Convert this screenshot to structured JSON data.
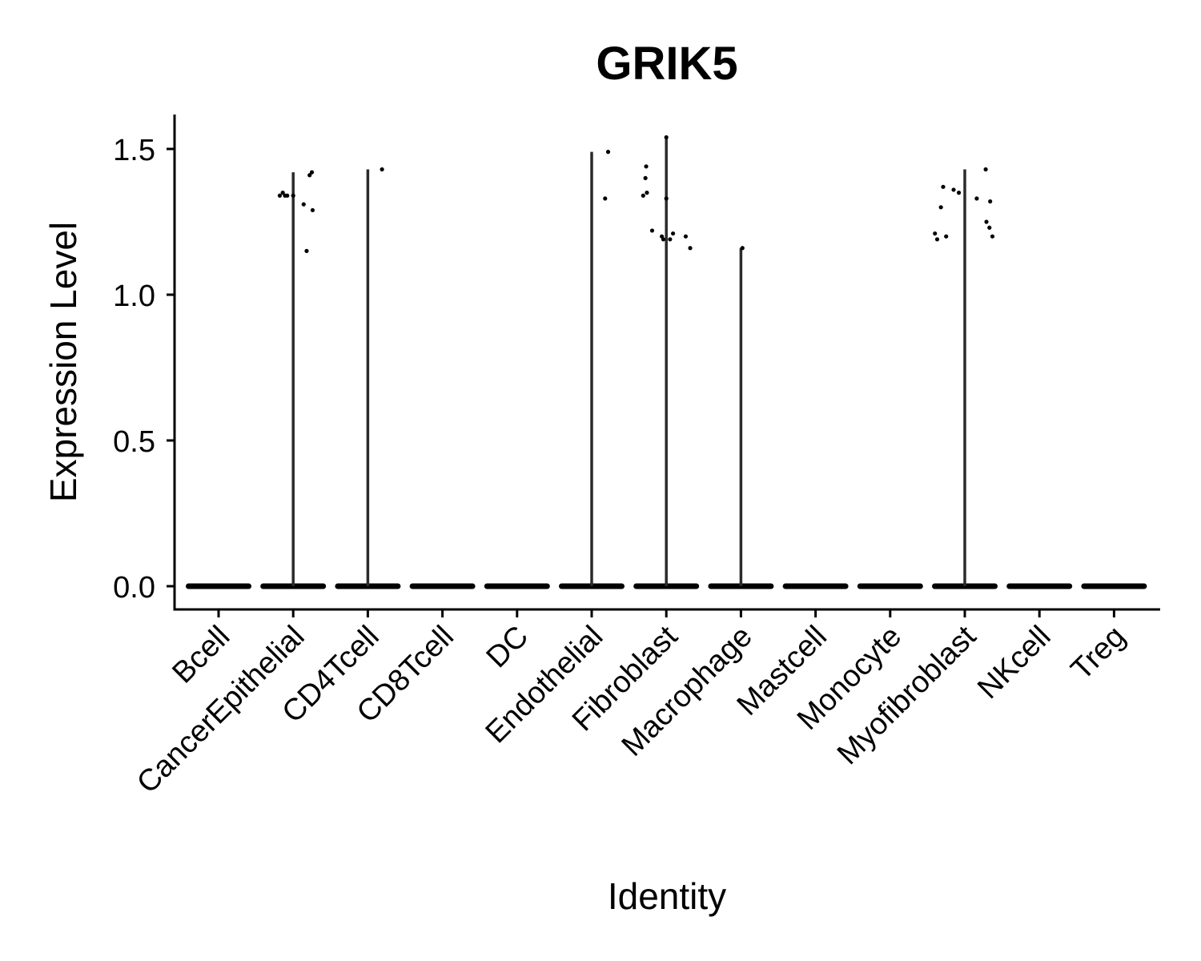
{
  "chart_data": {
    "type": "violin",
    "title": "GRIK5",
    "xlabel": "Identity",
    "ylabel": "Expression Level",
    "ylim": [
      -0.08,
      1.62
    ],
    "yticks": [
      "0.0",
      "0.5",
      "1.0",
      "1.5"
    ],
    "ytick_values": [
      0.0,
      0.5,
      1.0,
      1.5
    ],
    "categories": [
      "Bcell",
      "CancerEpithelial",
      "CD4Tcell",
      "CD8Tcell",
      "DC",
      "Endothelial",
      "Fibroblast",
      "Macrophage",
      "Mastcell",
      "Monocyte",
      "Myofibroblast",
      "NKcell",
      "Treg"
    ],
    "violin_max": [
      0,
      1.42,
      1.43,
      0,
      0,
      1.49,
      1.54,
      1.16,
      0,
      0,
      1.43,
      0,
      0
    ],
    "points": [
      [],
      [
        [
          -0.18,
          1.34
        ],
        [
          -0.14,
          1.35
        ],
        [
          -0.11,
          1.34
        ],
        [
          -0.08,
          1.34
        ],
        [
          0.0,
          1.34
        ],
        [
          0.14,
          1.31
        ],
        [
          0.18,
          1.15
        ],
        [
          0.22,
          1.41
        ],
        [
          0.25,
          1.42
        ],
        [
          0.26,
          1.29
        ]
      ],
      [
        [
          0.19,
          1.43
        ]
      ],
      [],
      [],
      [
        [
          0.18,
          1.33
        ],
        [
          0.22,
          1.49
        ]
      ],
      [
        [
          -0.31,
          1.34
        ],
        [
          -0.28,
          1.4
        ],
        [
          -0.27,
          1.44
        ],
        [
          -0.26,
          1.35
        ],
        [
          -0.19,
          1.22
        ],
        [
          -0.06,
          1.2
        ],
        [
          -0.04,
          1.19
        ],
        [
          0.0,
          1.54
        ],
        [
          0.0,
          1.33
        ],
        [
          0.05,
          1.19
        ],
        [
          0.09,
          1.21
        ],
        [
          0.26,
          1.2
        ],
        [
          0.32,
          1.16
        ]
      ],
      [
        [
          0.02,
          1.16
        ]
      ],
      [],
      [],
      [
        [
          -0.4,
          1.21
        ],
        [
          -0.37,
          1.19
        ],
        [
          -0.32,
          1.3
        ],
        [
          -0.29,
          1.37
        ],
        [
          -0.25,
          1.2
        ],
        [
          -0.15,
          1.36
        ],
        [
          -0.08,
          1.35
        ],
        [
          0.16,
          1.33
        ],
        [
          0.28,
          1.43
        ],
        [
          0.29,
          1.25
        ],
        [
          0.33,
          1.23
        ],
        [
          0.34,
          1.32
        ],
        [
          0.37,
          1.2
        ]
      ],
      [],
      []
    ]
  }
}
